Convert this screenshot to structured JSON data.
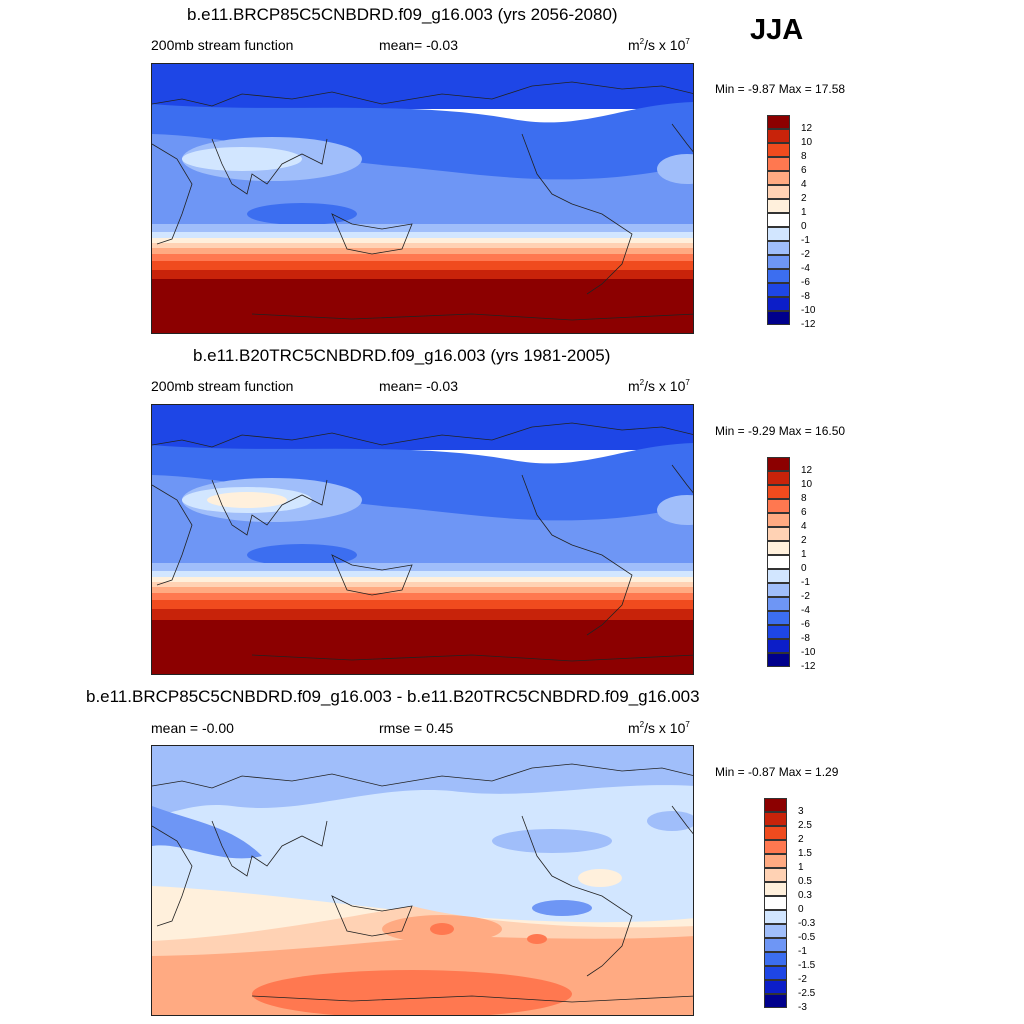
{
  "season": "JJA",
  "colors": {
    "abs_scale": [
      "#00008c",
      "#0c1ec8",
      "#1e46e6",
      "#3c6ef0",
      "#6e96f5",
      "#a0befa",
      "#d2e6ff",
      "#fff0dc",
      "#ffd2b4",
      "#ffaa82",
      "#ff7850",
      "#f04b1e",
      "#c8230a",
      "#8c0000"
    ],
    "diff_scale": [
      "#00008c",
      "#0c1ec8",
      "#1e46e6",
      "#3c6ef0",
      "#6e96f5",
      "#a0befa",
      "#d2e6ff",
      "#fff0dc",
      "#ffd2b4",
      "#ffaa82",
      "#ff7850",
      "#f04b1e",
      "#c8230a",
      "#8c0000"
    ]
  },
  "panels": [
    {
      "title": "b.e11.BRCP85C5CNBDRD.f09_g16.003 (yrs 2056-2080)",
      "left_label": "200mb stream function",
      "center_label": "mean=  -0.03",
      "units_base": "m",
      "units_sup": "2",
      "units_mid": "/s x 10",
      "units_exp": "7",
      "minmax": "Min =  -9.87 Max =  17.58",
      "colorbar_labels": [
        "12",
        "10",
        "8",
        "6",
        "4",
        "2",
        "1",
        "0",
        "-1",
        "-2",
        "-4",
        "-6",
        "-8",
        "-10",
        "-12"
      ]
    },
    {
      "title": "b.e11.B20TRC5CNBDRD.f09_g16.003 (yrs 1981-2005)",
      "left_label": "200mb stream function",
      "center_label": "mean=  -0.03",
      "units_base": "m",
      "units_sup": "2",
      "units_mid": "/s x 10",
      "units_exp": "7",
      "minmax": "Min =  -9.29 Max =  16.50",
      "colorbar_labels": [
        "12",
        "10",
        "8",
        "6",
        "4",
        "2",
        "1",
        "0",
        "-1",
        "-2",
        "-4",
        "-6",
        "-8",
        "-10",
        "-12"
      ]
    },
    {
      "title": "b.e11.BRCP85C5CNBDRD.f09_g16.003 - b.e11.B20TRC5CNBDRD.f09_g16.003",
      "left_label": "mean =  -0.00",
      "center_label": "rmse =   0.45",
      "units_base": "m",
      "units_sup": "2",
      "units_mid": "/s x 10",
      "units_exp": "7",
      "minmax": "Min =  -0.87 Max =   1.29",
      "colorbar_labels": [
        "3",
        "2.5",
        "2",
        "1.5",
        "1",
        "0.5",
        "0.3",
        "0",
        "-0.3",
        "-0.5",
        "-1",
        "-1.5",
        "-2",
        "-2.5",
        "-3"
      ]
    }
  ]
}
